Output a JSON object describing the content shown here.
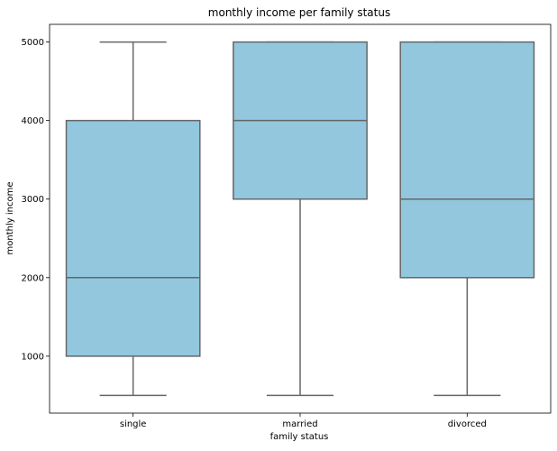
{
  "chart_data": {
    "type": "box",
    "title": "monthly income per family status",
    "xlabel": "family status",
    "ylabel": "monthly income",
    "categories": [
      "single",
      "married",
      "divorced"
    ],
    "boxes": [
      {
        "category": "single",
        "whisker_low": 500,
        "q1": 1000,
        "median": 2000,
        "q3": 4000,
        "whisker_high": 5000
      },
      {
        "category": "married",
        "whisker_low": 500,
        "q1": 3000,
        "median": 4000,
        "q3": 5000,
        "whisker_high": 5000
      },
      {
        "category": "divorced",
        "whisker_low": 500,
        "q1": 2000,
        "median": 3000,
        "q3": 5000,
        "whisker_high": 5000
      }
    ],
    "yticks": [
      1000,
      2000,
      3000,
      4000,
      5000
    ],
    "ylim": [
      275,
      5225
    ],
    "grid": false,
    "colors": {
      "box_fill": "#92c7de",
      "box_edge": "#666666",
      "axes": "#000000"
    }
  }
}
